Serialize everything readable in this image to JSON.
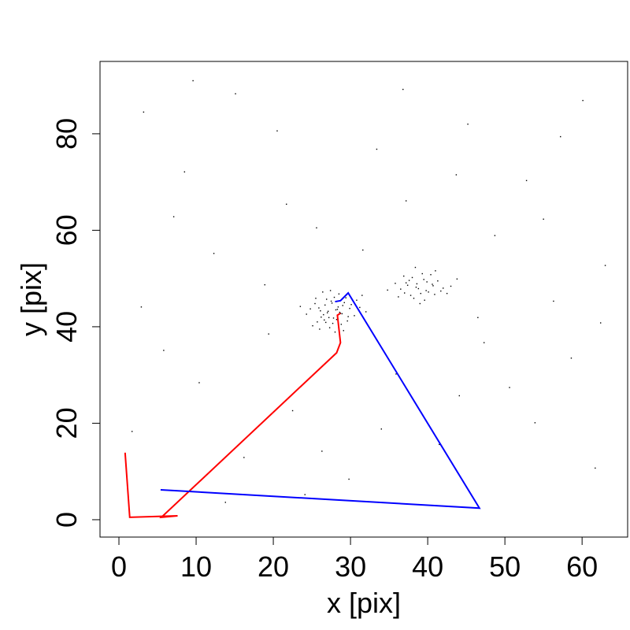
{
  "chart_data": {
    "type": "scatter",
    "xlabel": "x [pix]",
    "ylabel": "y [pix]",
    "xlim": [
      -2.45,
      65.9
    ],
    "ylim": [
      -3.6,
      95.0
    ],
    "xticks": [
      0,
      10,
      20,
      30,
      40,
      50,
      60
    ],
    "yticks": [
      0,
      20,
      40,
      60,
      80
    ],
    "point_color": "#000000",
    "points": [
      [
        27.1,
        43.2
      ],
      [
        28.4,
        44.1
      ],
      [
        26.5,
        42.5
      ],
      [
        29.2,
        45.0
      ],
      [
        27.8,
        41.8
      ],
      [
        25.9,
        43.9
      ],
      [
        28.9,
        42.7
      ],
      [
        30.1,
        44.6
      ],
      [
        26.8,
        40.9
      ],
      [
        27.5,
        45.3
      ],
      [
        28.1,
        43.5
      ],
      [
        29.6,
        41.2
      ],
      [
        25.4,
        44.8
      ],
      [
        26.2,
        42.0
      ],
      [
        27.9,
        46.1
      ],
      [
        28.6,
        43.0
      ],
      [
        30.5,
        42.3
      ],
      [
        24.8,
        43.7
      ],
      [
        27.3,
        39.8
      ],
      [
        29.0,
        44.4
      ],
      [
        26.9,
        45.7
      ],
      [
        28.2,
        41.5
      ],
      [
        27.0,
        42.9
      ],
      [
        29.9,
        43.8
      ],
      [
        25.7,
        41.0
      ],
      [
        31.2,
        44.0
      ],
      [
        26.4,
        47.2
      ],
      [
        28.8,
        40.5
      ],
      [
        27.6,
        44.9
      ],
      [
        24.3,
        42.6
      ],
      [
        29.4,
        46.0
      ],
      [
        26.1,
        43.3
      ],
      [
        28.0,
        38.9
      ],
      [
        27.2,
        41.9
      ],
      [
        30.8,
        45.5
      ],
      [
        25.1,
        40.2
      ],
      [
        28.5,
        46.8
      ],
      [
        26.7,
        44.5
      ],
      [
        29.7,
        42.1
      ],
      [
        27.4,
        47.5
      ],
      [
        23.5,
        44.2
      ],
      [
        32.0,
        43.1
      ],
      [
        26.0,
        39.5
      ],
      [
        28.3,
        43.6
      ],
      [
        27.7,
        40.7
      ],
      [
        31.5,
        46.5
      ],
      [
        25.5,
        45.9
      ],
      [
        29.1,
        39.2
      ],
      [
        26.6,
        41.4
      ],
      [
        28.7,
        42.8
      ],
      [
        38.5,
        48.2
      ],
      [
        39.8,
        47.5
      ],
      [
        37.2,
        49.1
      ],
      [
        40.6,
        48.8
      ],
      [
        39.1,
        46.9
      ],
      [
        36.5,
        47.8
      ],
      [
        41.3,
        49.5
      ],
      [
        38.0,
        50.2
      ],
      [
        40.1,
        47.2
      ],
      [
        37.8,
        46.5
      ],
      [
        39.5,
        49.8
      ],
      [
        42.0,
        48.0
      ],
      [
        36.9,
        50.5
      ],
      [
        38.8,
        47.9
      ],
      [
        40.9,
        46.7
      ],
      [
        37.4,
        48.6
      ],
      [
        39.3,
        51.0
      ],
      [
        41.7,
        47.4
      ],
      [
        38.2,
        45.9
      ],
      [
        35.8,
        49.0
      ],
      [
        43.0,
        48.4
      ],
      [
        39.9,
        49.3
      ],
      [
        37.0,
        47.0
      ],
      [
        40.4,
        50.8
      ],
      [
        38.6,
        48.9
      ],
      [
        36.2,
        46.2
      ],
      [
        41.0,
        51.6
      ],
      [
        39.6,
        45.5
      ],
      [
        37.6,
        49.6
      ],
      [
        42.5,
        46.9
      ],
      [
        38.4,
        52.3
      ],
      [
        40.7,
        48.5
      ],
      [
        34.8,
        47.6
      ],
      [
        39.0,
        44.8
      ],
      [
        43.8,
        49.9
      ],
      [
        3.2,
        84.5
      ],
      [
        8.5,
        72.1
      ],
      [
        15.1,
        88.3
      ],
      [
        21.7,
        65.4
      ],
      [
        33.4,
        76.8
      ],
      [
        45.2,
        82.0
      ],
      [
        52.8,
        70.3
      ],
      [
        60.1,
        86.9
      ],
      [
        12.3,
        55.2
      ],
      [
        18.9,
        48.7
      ],
      [
        25.6,
        60.5
      ],
      [
        37.2,
        66.1
      ],
      [
        48.7,
        58.9
      ],
      [
        56.3,
        45.3
      ],
      [
        63.0,
        52.7
      ],
      [
        5.8,
        35.1
      ],
      [
        10.4,
        28.4
      ],
      [
        22.5,
        22.6
      ],
      [
        35.9,
        30.2
      ],
      [
        44.1,
        25.7
      ],
      [
        58.6,
        33.5
      ],
      [
        1.7,
        18.3
      ],
      [
        16.2,
        12.9
      ],
      [
        29.8,
        8.4
      ],
      [
        41.5,
        15.6
      ],
      [
        53.9,
        20.1
      ],
      [
        61.7,
        10.7
      ],
      [
        7.1,
        62.8
      ],
      [
        19.4,
        38.5
      ],
      [
        31.6,
        55.9
      ],
      [
        47.3,
        36.7
      ],
      [
        55.0,
        62.3
      ],
      [
        2.9,
        44.1
      ],
      [
        13.8,
        3.6
      ],
      [
        24.1,
        5.2
      ],
      [
        50.6,
        27.4
      ],
      [
        62.4,
        40.8
      ],
      [
        9.6,
        91.0
      ],
      [
        36.8,
        89.2
      ],
      [
        43.7,
        71.5
      ],
      [
        57.2,
        79.4
      ],
      [
        20.5,
        80.6
      ],
      [
        26.3,
        14.2
      ],
      [
        34.0,
        18.8
      ],
      [
        46.5,
        41.9
      ]
    ],
    "lines": [
      {
        "color": "#ff0000",
        "x": [
          0.8,
          1.4,
          7.6,
          5.5,
          28.2,
          28.7,
          28.3,
          28.7
        ],
        "y": [
          13.9,
          0.5,
          0.8,
          0.5,
          34.6,
          36.7,
          42.4,
          42.8
        ]
      },
      {
        "color": "#0000ff",
        "x": [
          5.4,
          46.7,
          29.7,
          28.7,
          28.0
        ],
        "y": [
          6.2,
          2.4,
          47.0,
          45.4,
          45.2
        ]
      }
    ]
  }
}
